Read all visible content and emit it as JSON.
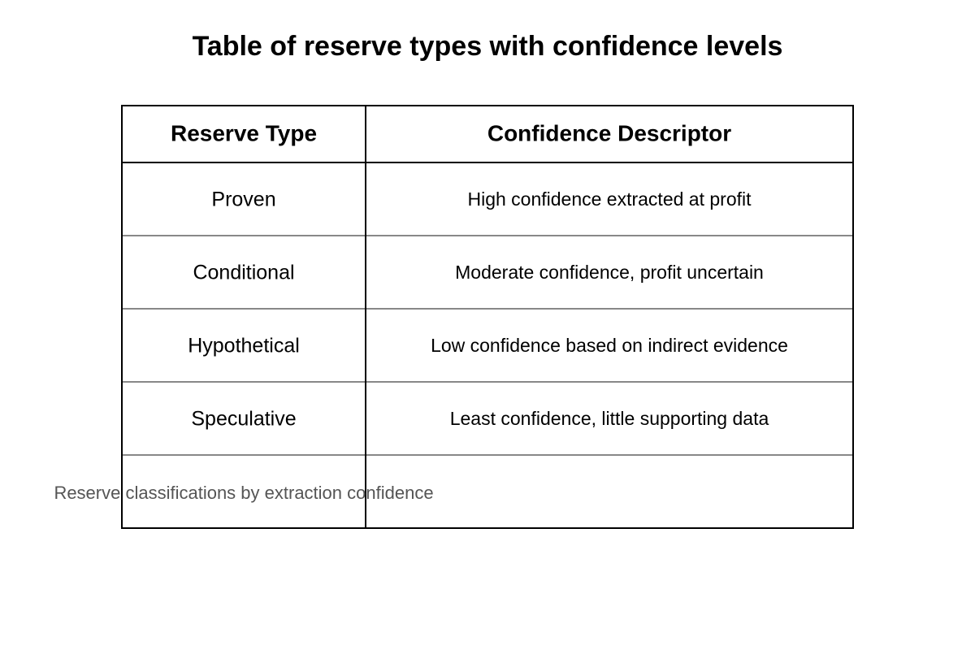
{
  "header": {
    "title": "Table of reserve types with confidence levels"
  },
  "table": {
    "columns": [
      "Reserve Type",
      "Confidence Descriptor"
    ],
    "rows": [
      [
        "Proven",
        "High confidence extracted at profit"
      ],
      [
        "Conditional",
        "Moderate confidence, profit uncertain"
      ],
      [
        "Hypothetical",
        "Low confidence based on indirect evidence"
      ],
      [
        "Speculative",
        "Least confidence, little supporting data"
      ]
    ]
  },
  "caption": "Reserve classifications by extraction confidence"
}
